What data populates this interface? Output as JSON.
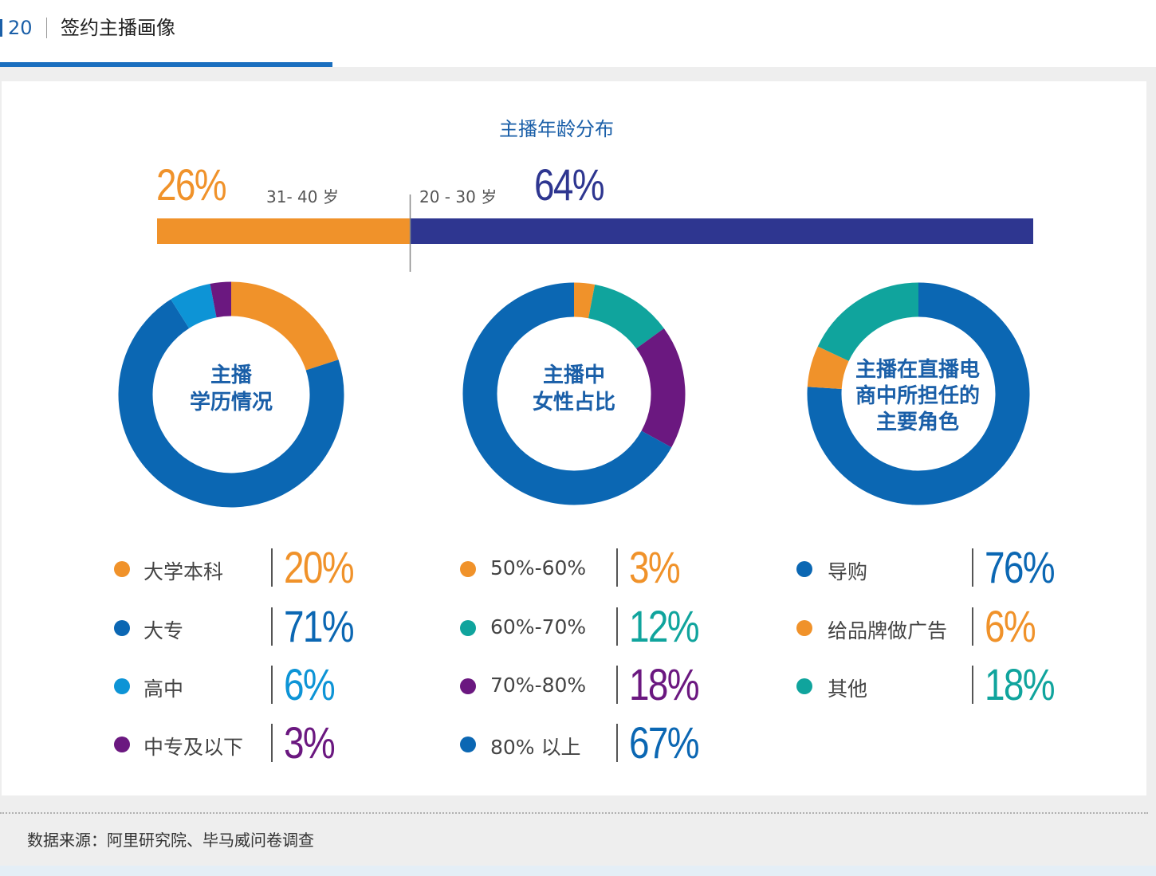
{
  "header": {
    "page_number": "20",
    "title": "签约主播画像"
  },
  "colors": {
    "orange": "#f0922a",
    "navy": "#2e3690",
    "blue": "#0b67b3",
    "light_blue": "#0d94d6",
    "purple": "#6b1880",
    "teal": "#10a49d"
  },
  "chart_data": [
    {
      "type": "bar",
      "title": "主播年龄分布",
      "categories": [
        "31- 40 岁",
        "20 - 30 岁"
      ],
      "values": [
        26,
        64
      ],
      "value_labels": [
        "26%",
        "64%"
      ],
      "colors": [
        "#f0922a",
        "#2e3690"
      ]
    },
    {
      "type": "pie",
      "title": "主播\n学历情况",
      "categories": [
        "大学本科",
        "大专",
        "高中",
        "中专及以下"
      ],
      "values": [
        20,
        71,
        6,
        3
      ],
      "value_labels": [
        "20%",
        "71%",
        "6%",
        "3%"
      ],
      "colors": [
        "#f0922a",
        "#0b67b3",
        "#0d94d6",
        "#6b1880"
      ]
    },
    {
      "type": "pie",
      "title": "主播中\n女性占比",
      "categories": [
        "50%-60%",
        "60%-70%",
        "70%-80%",
        "80% 以上"
      ],
      "values": [
        3,
        12,
        18,
        67
      ],
      "value_labels": [
        "3%",
        "12%",
        "18%",
        "67%"
      ],
      "colors": [
        "#f0922a",
        "#10a49d",
        "#6b1880",
        "#0b67b3"
      ]
    },
    {
      "type": "pie",
      "title": "主播在直播电\n商中所担任的\n主要角色",
      "categories": [
        "导购",
        "给品牌做广告",
        "其他"
      ],
      "values": [
        76,
        6,
        18
      ],
      "value_labels": [
        "76%",
        "6%",
        "18%"
      ],
      "colors": [
        "#0b67b3",
        "#f0922a",
        "#10a49d"
      ]
    }
  ],
  "age": {
    "title": "主播年龄分布",
    "left_pct": "26%",
    "left_label": "31- 40 岁",
    "right_label": "20 - 30 岁",
    "right_pct": "64%"
  },
  "donuts": [
    {
      "line1": "主播",
      "line2": "学历情况",
      "line3": ""
    },
    {
      "line1": "主播中",
      "line2": "女性占比",
      "line3": ""
    },
    {
      "line1": "主播在直播电",
      "line2": "商中所担任的",
      "line3": "主要角色"
    }
  ],
  "legends": [
    [
      {
        "label": "大学本科",
        "value": "20%"
      },
      {
        "label": "大专",
        "value": "71%"
      },
      {
        "label": "高中",
        "value": "6%"
      },
      {
        "label": "中专及以下",
        "value": "3%"
      }
    ],
    [
      {
        "label": "50%-60%",
        "value": "3%"
      },
      {
        "label": "60%-70%",
        "value": "12%"
      },
      {
        "label": "70%-80%",
        "value": "18%"
      },
      {
        "label": "80% 以上",
        "value": "67%"
      }
    ],
    [
      {
        "label": "导购",
        "value": "76%"
      },
      {
        "label": "给品牌做广告",
        "value": "6%"
      },
      {
        "label": "其他",
        "value": "18%"
      }
    ]
  ],
  "source": "数据来源：阿里研究院、毕马威问卷调查"
}
